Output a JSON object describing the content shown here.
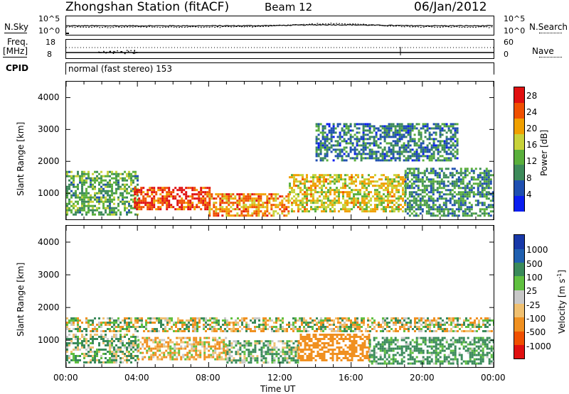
{
  "header": {
    "station": "Zhongshan Station (fitACF)",
    "beam": "Beam 12",
    "date": "06/Jan/2012"
  },
  "sky_panel": {
    "left_label": "N.Sky",
    "right_label": "N.Search",
    "left_ticks": [
      "10^5",
      "10^0"
    ],
    "right_ticks": [
      "10^5",
      "10^0"
    ]
  },
  "freq_panel": {
    "left_label_1": "Freq.",
    "left_label_2": "[MHz]",
    "right_label": "Nave",
    "left_ticks": [
      "18",
      "8"
    ],
    "right_ticks": [
      "60",
      "0"
    ]
  },
  "cpid": {
    "label": "CPID",
    "value": "normal (fast stereo) 153"
  },
  "x_axis": {
    "label": "Time UT",
    "ticks": [
      "00:00",
      "04:00",
      "08:00",
      "12:00",
      "16:00",
      "20:00",
      "00:00"
    ]
  },
  "colors": {
    "power": [
      "#0a1ef0",
      "#1f4fb0",
      "#3d8a5a",
      "#5aaf3c",
      "#c8d23a",
      "#f0a000",
      "#f05000",
      "#e01010"
    ],
    "velocity": [
      "#e01010",
      "#f05000",
      "#f09020",
      "#f0c070",
      "#c8c8c8",
      "#60c040",
      "#3a8a5a",
      "#2060b0",
      "#1838a8"
    ]
  },
  "chart_data": [
    {
      "type": "heatmap",
      "title": "",
      "ylabel": "Slant Range [km]",
      "xlabel": "",
      "ylim": [
        180,
        4500
      ],
      "yticks": [
        1000,
        2000,
        3000,
        4000
      ],
      "x_ticks": [
        "00:00",
        "04:00",
        "08:00",
        "12:00",
        "16:00",
        "20:00",
        "00:00"
      ],
      "colorbar": {
        "label": "Power [dB]",
        "ticks": [
          4,
          8,
          12,
          16,
          20,
          24,
          28
        ],
        "range": [
          0,
          30
        ]
      },
      "regions": [
        {
          "t_start": 0.0,
          "t_end": 4.0,
          "range_min": 300,
          "range_max": 1700,
          "value_db": 12
        },
        {
          "t_start": 3.8,
          "t_end": 8.0,
          "range_min": 500,
          "range_max": 1200,
          "value_db": 26
        },
        {
          "t_start": 8.0,
          "t_end": 12.5,
          "range_min": 300,
          "range_max": 1000,
          "value_db": 22
        },
        {
          "t_start": 12.5,
          "t_end": 19.0,
          "range_min": 400,
          "range_max": 1600,
          "value_db": 18
        },
        {
          "t_start": 19.0,
          "t_end": 24.0,
          "range_min": 300,
          "range_max": 1800,
          "value_db": 10
        },
        {
          "t_start": 14.0,
          "t_end": 22.0,
          "range_min": 2000,
          "range_max": 3200,
          "value_db": 8
        }
      ]
    },
    {
      "type": "heatmap",
      "title": "",
      "ylabel": "Slant Range [km]",
      "xlabel": "Time UT",
      "ylim": [
        180,
        4500
      ],
      "yticks": [
        1000,
        2000,
        3000,
        4000
      ],
      "x_ticks": [
        "00:00",
        "04:00",
        "08:00",
        "12:00",
        "16:00",
        "20:00",
        "00:00"
      ],
      "colorbar": {
        "label": "Velocity [m s^-1]",
        "ticks": [
          1000,
          500,
          100,
          25,
          -25,
          -100,
          -500,
          -1000
        ]
      },
      "regions": [
        {
          "t_start": 0.0,
          "t_end": 4.0,
          "range_min": 300,
          "range_max": 1200,
          "value_ms": 100
        },
        {
          "t_start": 0.0,
          "t_end": 24.0,
          "range_min": 1300,
          "range_max": 1700,
          "value_ms": 0
        },
        {
          "t_start": 4.0,
          "t_end": 9.0,
          "range_min": 400,
          "range_max": 1100,
          "value_ms": -100
        },
        {
          "t_start": 9.0,
          "t_end": 13.0,
          "range_min": 300,
          "range_max": 1000,
          "value_ms": 100
        },
        {
          "t_start": 13.0,
          "t_end": 17.0,
          "range_min": 400,
          "range_max": 1200,
          "value_ms": -300
        },
        {
          "t_start": 17.0,
          "t_end": 24.0,
          "range_min": 300,
          "range_max": 1100,
          "value_ms": 200
        }
      ]
    }
  ]
}
